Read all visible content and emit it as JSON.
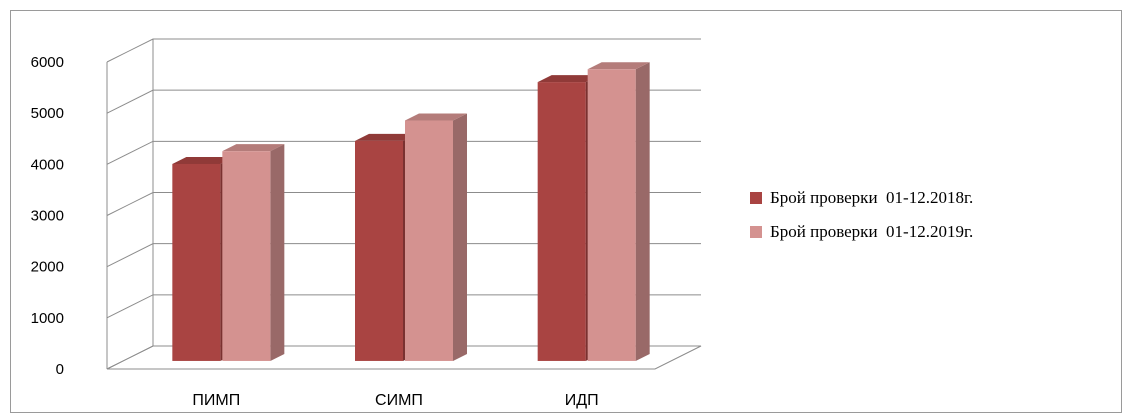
{
  "chart_data": {
    "type": "bar",
    "style": "3d-clustered-column",
    "categories": [
      "ПИМП",
      "СИМП",
      "ИДП"
    ],
    "series": [
      {
        "name": "Брой проверки  01-12.2018г.",
        "values": [
          3850,
          4300,
          5450
        ],
        "color": "#a94442"
      },
      {
        "name": "Брой проверки  01-12.2019г.",
        "values": [
          4100,
          4700,
          5700
        ],
        "color": "#d49290"
      }
    ],
    "yticks": [
      "0",
      "1000",
      "2000",
      "3000",
      "4000",
      "5000",
      "6000"
    ],
    "ylim": [
      0,
      6000
    ],
    "grid": true,
    "legend_position": "right"
  }
}
